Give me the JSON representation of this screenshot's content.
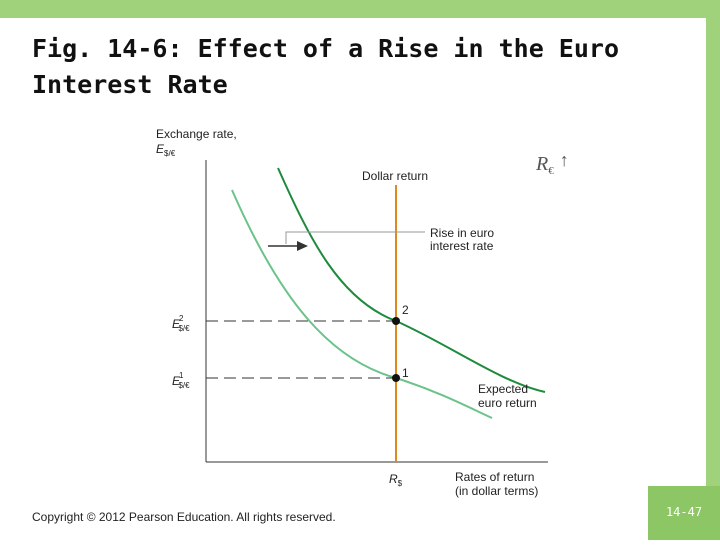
{
  "header": {
    "title_lines": [
      "Fig. 14-6: Effect of a Rise in the Euro",
      "Interest Rate"
    ]
  },
  "figure": {
    "y_axis_label": {
      "line1": "Exchange rate,",
      "base": "E",
      "sub": "$/€"
    },
    "x_axis_label": [
      "Rates of return",
      "(in dollar terms)"
    ],
    "dollar_return_label": "Dollar return",
    "dollar_rate": {
      "base": "R",
      "sub": "$"
    },
    "euro_rate_change": {
      "base": "R",
      "sub": "€",
      "arrow": "↑"
    },
    "shift_label": [
      "Rise in euro",
      "interest rate"
    ],
    "curve_label": [
      "Expected",
      "euro return"
    ],
    "points": [
      {
        "id": "1",
        "base": "E",
        "sub": "$/€",
        "sup": "1"
      },
      {
        "id": "2",
        "base": "E",
        "sub": "$/€",
        "sup": "2"
      }
    ]
  },
  "footer": {
    "copyright": "Copyright © 2012 Pearson Education. All rights reserved.",
    "slide_number": "14-47"
  }
}
